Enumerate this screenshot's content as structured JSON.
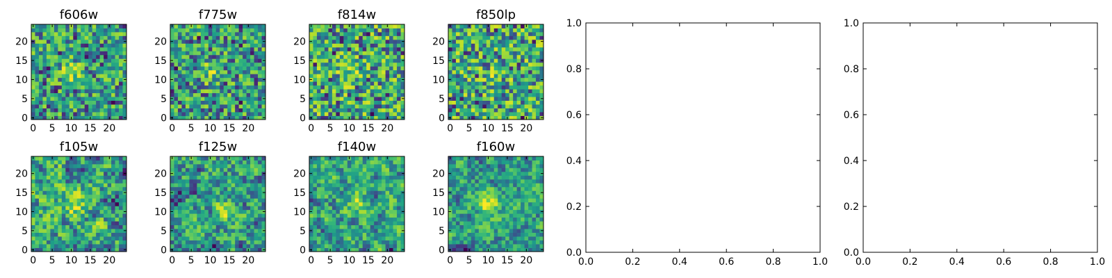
{
  "chart_data": [
    {
      "type": "heatmap",
      "title": "f606w",
      "xticks": [
        "0",
        "5",
        "10",
        "15",
        "20"
      ],
      "yticks": [
        "0",
        "5",
        "10",
        "15",
        "20"
      ],
      "xlim": [
        -0.5,
        24.5
      ],
      "ylim": [
        -0.5,
        24.5
      ],
      "grid": false,
      "colormap": "viridis",
      "bright_spot": [
        10,
        12
      ],
      "spot_strength": 0.45,
      "smooth": 0,
      "seed": 11
    },
    {
      "type": "heatmap",
      "title": "f775w",
      "xticks": [
        "0",
        "5",
        "10",
        "15",
        "20"
      ],
      "yticks": [
        "0",
        "5",
        "10",
        "15",
        "20"
      ],
      "xlim": [
        -0.5,
        24.5
      ],
      "ylim": [
        -0.5,
        24.5
      ],
      "grid": false,
      "colormap": "viridis",
      "bright_spot": [
        10,
        12
      ],
      "spot_strength": 0.35,
      "smooth": 0,
      "seed": 23
    },
    {
      "type": "heatmap",
      "title": "f814w",
      "xticks": [
        "0",
        "5",
        "10",
        "15",
        "20"
      ],
      "yticks": [
        "0",
        "5",
        "10",
        "15",
        "20"
      ],
      "xlim": [
        -0.5,
        24.5
      ],
      "ylim": [
        -0.5,
        24.5
      ],
      "grid": false,
      "colormap": "viridis",
      "bright_spot": [
        10,
        12
      ],
      "spot_strength": 0.25,
      "smooth": 0,
      "seed": 37
    },
    {
      "type": "heatmap",
      "title": "f850lp",
      "xticks": [
        "0",
        "5",
        "10",
        "15",
        "20"
      ],
      "yticks": [
        "0",
        "5",
        "10",
        "15",
        "20"
      ],
      "xlim": [
        -0.5,
        24.5
      ],
      "ylim": [
        -0.5,
        24.5
      ],
      "grid": false,
      "colormap": "viridis",
      "bright_spot": [
        12,
        12
      ],
      "spot_strength": 0.15,
      "smooth": 0,
      "seed": 41
    },
    {
      "type": "heatmap",
      "title": "f105w",
      "xticks": [
        "0",
        "5",
        "10",
        "15",
        "20"
      ],
      "yticks": [
        "0",
        "5",
        "10",
        "15",
        "20"
      ],
      "xlim": [
        -0.5,
        24.5
      ],
      "ylim": [
        -0.5,
        24.5
      ],
      "grid": false,
      "colormap": "viridis",
      "bright_spot": [
        11,
        12
      ],
      "spot_strength": 0.3,
      "smooth": 1,
      "seed": 53
    },
    {
      "type": "heatmap",
      "title": "f125w",
      "xticks": [
        "0",
        "5",
        "10",
        "15",
        "20"
      ],
      "yticks": [
        "0",
        "5",
        "10",
        "15",
        "20"
      ],
      "xlim": [
        -0.5,
        24.5
      ],
      "ylim": [
        -0.5,
        24.5
      ],
      "grid": false,
      "colormap": "viridis",
      "bright_spot": [
        14,
        10
      ],
      "spot_strength": 0.3,
      "smooth": 1,
      "seed": 67
    },
    {
      "type": "heatmap",
      "title": "f140w",
      "xticks": [
        "0",
        "5",
        "10",
        "15",
        "20"
      ],
      "yticks": [
        "0",
        "5",
        "10",
        "15",
        "20"
      ],
      "xlim": [
        -0.5,
        24.5
      ],
      "ylim": [
        -0.5,
        24.5
      ],
      "grid": false,
      "colormap": "viridis",
      "bright_spot": [
        12,
        12
      ],
      "spot_strength": 0.3,
      "smooth": 1,
      "seed": 79
    },
    {
      "type": "heatmap",
      "title": "f160w",
      "xticks": [
        "0",
        "5",
        "10",
        "15",
        "20"
      ],
      "yticks": [
        "0",
        "5",
        "10",
        "15",
        "20"
      ],
      "xlim": [
        -0.5,
        24.5
      ],
      "ylim": [
        -0.5,
        24.5
      ],
      "grid": false,
      "colormap": "viridis",
      "bright_spot": [
        10,
        12
      ],
      "spot_strength": 0.55,
      "smooth": 1,
      "seed": 97
    },
    {
      "type": "empty",
      "title": "",
      "xticks": [
        "0.0",
        "0.2",
        "0.4",
        "0.6",
        "0.8",
        "1.0"
      ],
      "yticks": [
        "0.0",
        "0.2",
        "0.4",
        "0.6",
        "0.8",
        "1.0"
      ],
      "xlim": [
        0,
        1
      ],
      "ylim": [
        0,
        1
      ],
      "grid": false
    },
    {
      "type": "empty",
      "title": "",
      "xticks": [
        "0.0",
        "0.2",
        "0.4",
        "0.6",
        "0.8",
        "1.0"
      ],
      "yticks": [
        "0.0",
        "0.2",
        "0.4",
        "0.6",
        "0.8",
        "1.0"
      ],
      "xlim": [
        0,
        1
      ],
      "ylim": [
        0,
        1
      ],
      "grid": false
    }
  ]
}
